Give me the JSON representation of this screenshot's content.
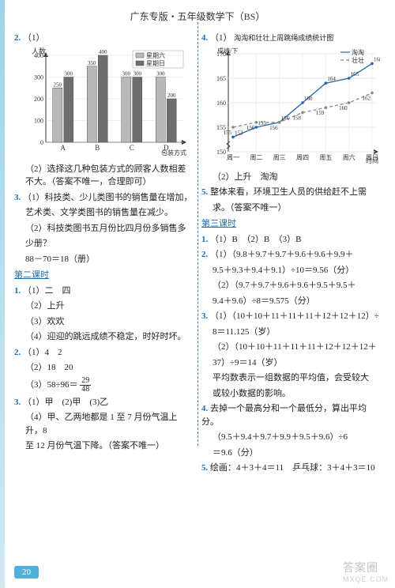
{
  "header": "广东专版・五年级数学下（BS）",
  "pageNumber": "20",
  "watermark": "答案圈",
  "watermarkSub": "MXQE.COM",
  "left": {
    "q2_num": "2.",
    "q2_1": "（1）",
    "barChart": {
      "yLabel": "人数",
      "legendSat": "星期六",
      "legendSun": "星期日",
      "xLabel": "包装方式",
      "categories": [
        "A",
        "B",
        "C",
        "D"
      ],
      "satValues": [
        250,
        350,
        300,
        300
      ],
      "sunValues": [
        300,
        400,
        300,
        200
      ],
      "satColor": "#b9b9b9",
      "sunColor": "#6e6e6e",
      "yTicks": [
        0,
        100,
        200,
        300,
        400
      ],
      "barLabels": [
        "250",
        "300",
        "350",
        "400",
        "300",
        "300",
        "300",
        "200"
      ]
    },
    "q2_2": "（2）选择这几种包装方式的顾客人数相差不大。（答案不唯一，合理即可）",
    "q3_num": "3.",
    "q3_1a": "（1）科技类、少儿类图书的销售量在增加，",
    "q3_1b": "艺术类、文学类图书的销售量在减少。",
    "q3_2a": "（2）科技类图书五月份比四月份多销售多",
    "q3_2b": "少册？",
    "q3_2c": "88－70＝18（册）",
    "sec2": "第二课时",
    "s2_q1_num": "1.",
    "s2_q1_1": "（1）二　四",
    "s2_q1_2": "（2）上升",
    "s2_q1_3": "（3）欢欢",
    "s2_q1_4": "（4）迎迎的跳远成绩不稳定，时好时坏。",
    "s2_q2_num": "2.",
    "s2_q2_1": "（1）4　2",
    "s2_q2_2": "（2）18　20",
    "s2_q2_3a": "（3）58÷96＝",
    "s2_q2_3_frac_n": "29",
    "s2_q2_3_frac_d": "48",
    "s2_q3_num": "3.",
    "s2_q3_1": "（1）甲　(2)甲　(3)乙",
    "s2_q3_4a": "（4）甲、乙两地都是 1 至 7 月份气温上升，8",
    "s2_q3_4b": "至 12 月份气温下降。（答案不唯一）"
  },
  "right": {
    "q4_num": "4.",
    "q4_1": "（1）",
    "lineChart": {
      "title": "淘淘和壮壮上周跳绳成绩统计图",
      "yLabel": "成绩/下",
      "xLabel": "时间",
      "legendA": "淘淘",
      "legendB": "壮壮",
      "aColor": "#2266aa",
      "bColor": "#888888",
      "aDash": "0",
      "bDash": "4,3",
      "yTicks": [
        150,
        155,
        160,
        165,
        170
      ],
      "xTicks": [
        "周一",
        "周二",
        "周三",
        "周四",
        "周五",
        "周六",
        "周日"
      ],
      "aValues": [
        153,
        155,
        156,
        160,
        164,
        165,
        168
      ],
      "bValues": [
        155,
        156,
        156,
        158,
        159,
        160,
        162
      ],
      "pointLabelsA": [
        "153",
        "155",
        "156",
        "160",
        "164",
        "165",
        "168"
      ],
      "pointLabelsB": [
        "155",
        "156",
        "156",
        "158",
        "159",
        "160",
        "162"
      ]
    },
    "q4_2": "（2）上升　淘淘",
    "q5_num": "5.",
    "q5a": "整体来看，环境卫生人员的供给赶不上需",
    "q5b": "求。（答案不唯一）",
    "sec3": "第三课时",
    "s3_q1_num": "1.",
    "s3_q1": "（1）B　（2）B　（3）B",
    "s3_q2_num": "2.",
    "s3_q2_1a": "（1）（9.8＋9.7＋9.7＋9.6＋9.6＋9.9＋",
    "s3_q2_1b": "9.5＋9.3＋9.4＋9.1）÷10＝9.56（分）",
    "s3_q2_2a": "（2）（9.7＋9.7＋9.6＋9.6＋9.5＋9.5＋",
    "s3_q2_2b": "9.4＋9.6）÷8＝9.575（分）",
    "s3_q3_num": "3.",
    "s3_q3_1a": "（1）（10＋10＋11＋11＋11＋12＋12＋12）÷",
    "s3_q3_1b": "8＝11.125（岁）",
    "s3_q3_2a": "（2）（10＋10＋11＋11＋11＋12＋12＋12＋",
    "s3_q3_2b": "37）÷9＝14（岁）",
    "s3_q3_c1": "平均数表示一组数据的平均值，会受较大",
    "s3_q3_c2": "或较小数据的影响。",
    "s3_q4_num": "4.",
    "s3_q4a": "去掉一个最高分和一个最低分，算出平均分。",
    "s3_q4b": "（9.5＋9.4＋9.7＋9.9＋9.5＋9.6）÷6",
    "s3_q4c": "＝9.6（分）",
    "s3_q5_num": "5.",
    "s3_q5": "绘画：4＋3＋4＝11　乒乓球：3＋4＋3＝10"
  }
}
